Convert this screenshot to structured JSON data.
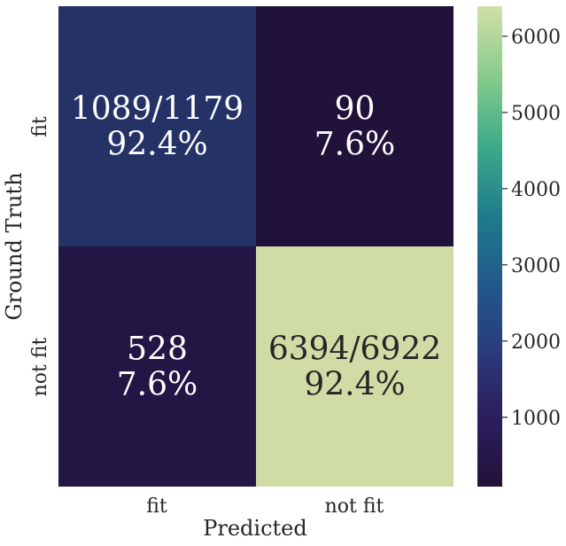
{
  "chart_data": {
    "type": "heatmap",
    "title": "",
    "xlabel": "Predicted",
    "ylabel": "Ground Truth",
    "x_categories": [
      "fit",
      "not fit"
    ],
    "y_categories": [
      "fit",
      "not fit"
    ],
    "values": [
      [
        1089,
        90
      ],
      [
        528,
        6394
      ]
    ],
    "annotations": [
      [
        "1089/1179",
        "92.4%"
      ],
      [
        "90",
        "7.6%"
      ],
      [
        "528",
        "7.6%"
      ],
      [
        "6394/6922",
        "92.4%"
      ]
    ],
    "colorbar": {
      "min": 90,
      "max": 6394,
      "ticks": [
        "1000",
        "2000",
        "3000",
        "4000",
        "5000",
        "6000"
      ],
      "colormap": "crest-like (dark purple to light green)"
    },
    "colors": {
      "cell_fit_fit": "#243266",
      "cell_fit_notfit": "#21123a",
      "cell_notfit_fit": "#221644",
      "cell_notfit_notfit": "#cfdca5",
      "text_light": "#ffffff",
      "text_dark": "#262626"
    }
  }
}
